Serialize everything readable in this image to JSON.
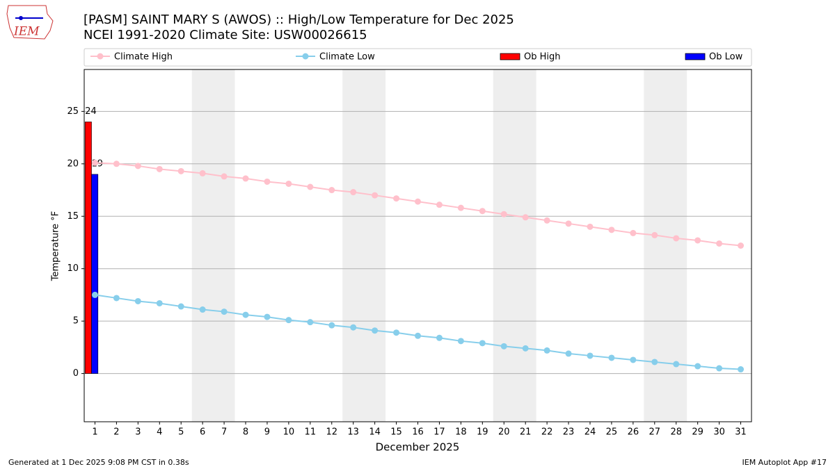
{
  "chart_data": {
    "type": "bar-line",
    "title": "[PASM] SAINT MARY S (AWOS) :: High/Low Temperature for Dec 2025",
    "subtitle": "NCEI 1991-2020 Climate Site: USW00026615",
    "logo_text": "IEM",
    "xlabel": "December 2025",
    "ylabel": "Temperature °F",
    "footer_left": "Generated at 1 Dec 2025 9:08 PM CST in 0.38s",
    "footer_right": "IEM Autoplot App #17",
    "x": [
      1,
      2,
      3,
      4,
      5,
      6,
      7,
      8,
      9,
      10,
      11,
      12,
      13,
      14,
      15,
      16,
      17,
      18,
      19,
      20,
      21,
      22,
      23,
      24,
      25,
      26,
      27,
      28,
      29,
      30,
      31
    ],
    "xlim": [
      0.5,
      31.5
    ],
    "xticks": [
      1,
      2,
      3,
      4,
      5,
      6,
      7,
      8,
      9,
      10,
      11,
      12,
      13,
      14,
      15,
      16,
      17,
      18,
      19,
      20,
      21,
      22,
      23,
      24,
      25,
      26,
      27,
      28,
      29,
      30,
      31
    ],
    "ylim": [
      -4.6,
      29.0
    ],
    "yticks": [
      0,
      5,
      10,
      15,
      20,
      25
    ],
    "grid": true,
    "weekend_spans": [
      [
        5.5,
        7.5
      ],
      [
        12.5,
        14.5
      ],
      [
        19.5,
        21.5
      ],
      [
        26.5,
        28.5
      ]
    ],
    "series": [
      {
        "name": "Climate High",
        "kind": "line",
        "color": "#ffc0cb",
        "values": [
          20.1,
          20.0,
          19.8,
          19.5,
          19.3,
          19.1,
          18.8,
          18.6,
          18.3,
          18.1,
          17.8,
          17.5,
          17.3,
          17.0,
          16.7,
          16.4,
          16.1,
          15.8,
          15.5,
          15.2,
          14.9,
          14.6,
          14.3,
          14.0,
          13.7,
          13.4,
          13.2,
          12.9,
          12.7,
          12.4,
          12.2
        ]
      },
      {
        "name": "Climate Low",
        "kind": "line",
        "color": "#87ceeb",
        "values": [
          7.5,
          7.2,
          6.9,
          6.7,
          6.4,
          6.1,
          5.9,
          5.6,
          5.4,
          5.1,
          4.9,
          4.6,
          4.4,
          4.1,
          3.9,
          3.6,
          3.4,
          3.1,
          2.9,
          2.6,
          2.4,
          2.2,
          1.9,
          1.7,
          1.5,
          1.3,
          1.1,
          0.9,
          0.7,
          0.5,
          0.4
        ]
      },
      {
        "name": "Ob High",
        "kind": "bar",
        "color": "#ff0000",
        "values": [
          24,
          null,
          null,
          null,
          null,
          null,
          null,
          null,
          null,
          null,
          null,
          null,
          null,
          null,
          null,
          null,
          null,
          null,
          null,
          null,
          null,
          null,
          null,
          null,
          null,
          null,
          null,
          null,
          null,
          null,
          null
        ]
      },
      {
        "name": "Ob Low",
        "kind": "bar",
        "color": "#0000ff",
        "values": [
          19,
          null,
          null,
          null,
          null,
          null,
          null,
          null,
          null,
          null,
          null,
          null,
          null,
          null,
          null,
          null,
          null,
          null,
          null,
          null,
          null,
          null,
          null,
          null,
          null,
          null,
          null,
          null,
          null,
          null,
          null
        ]
      }
    ]
  }
}
